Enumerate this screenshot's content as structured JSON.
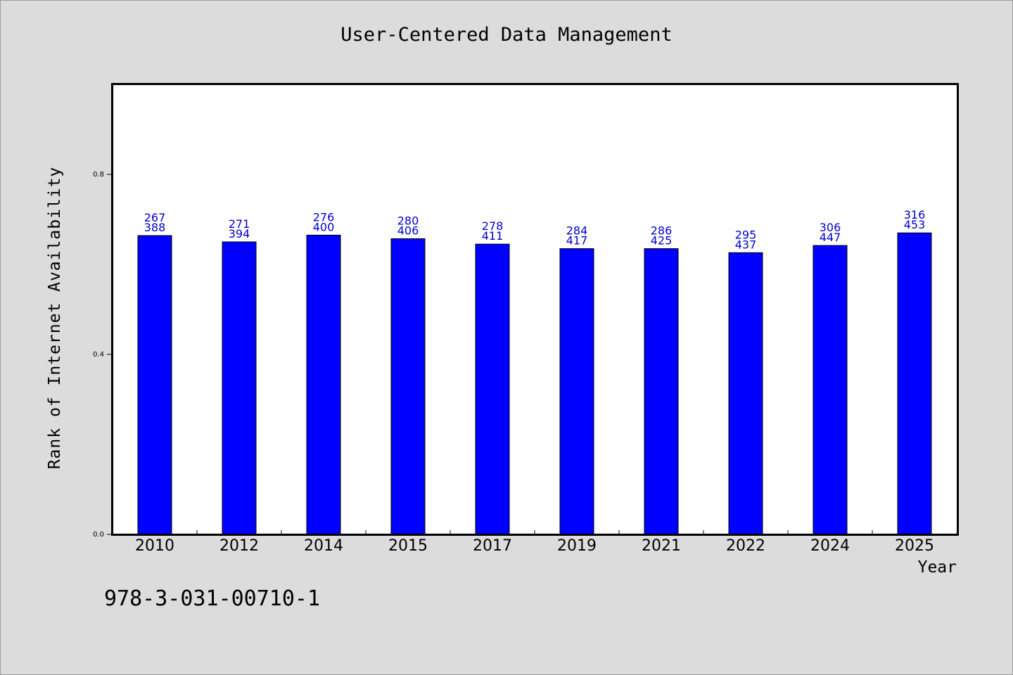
{
  "chart_data": {
    "type": "bar",
    "title": "User-Centered Data Management",
    "xlabel": "Year",
    "ylabel": "Rank of Internet Availability",
    "categories": [
      "2010",
      "2012",
      "2014",
      "2015",
      "2017",
      "2019",
      "2021",
      "2022",
      "2024",
      "2025"
    ],
    "values": [
      0.664,
      0.65,
      0.665,
      0.657,
      0.645,
      0.635,
      0.635,
      0.626,
      0.642,
      0.67
    ],
    "label_top": [
      "267",
      "271",
      "276",
      "280",
      "278",
      "284",
      "286",
      "295",
      "306",
      "316"
    ],
    "label_bottom": [
      "388",
      "394",
      "400",
      "406",
      "411",
      "417",
      "425",
      "437",
      "447",
      "453"
    ],
    "y_ticks": [
      "0.0",
      "0.4",
      "0.8"
    ],
    "y_tick_values": [
      0.0,
      0.4,
      0.8
    ],
    "ylim": [
      0,
      1.0
    ],
    "grid": false,
    "bar_color": "#0000ff",
    "label_color": "#0000cc"
  },
  "footer": {
    "isbn": "978-3-031-00710-1"
  }
}
